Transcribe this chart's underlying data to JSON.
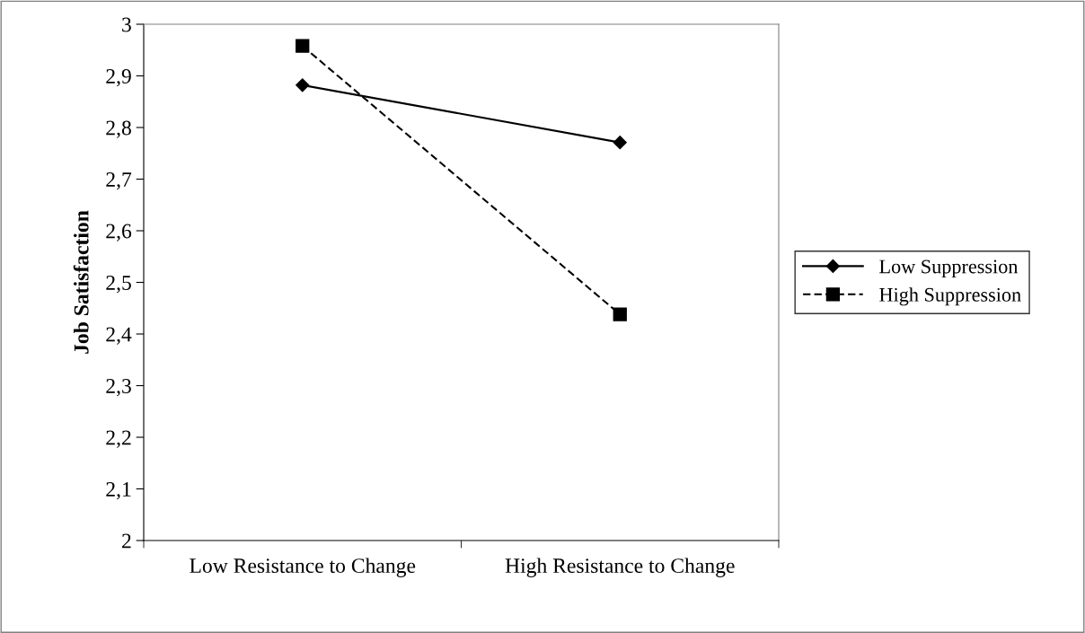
{
  "chart_data": {
    "type": "line",
    "ylabel": "Job Satisfaction",
    "categories": [
      "Low Resistance to Change",
      "High Resistance to Change"
    ],
    "series": [
      {
        "name": "Low Suppression",
        "color": "#000000",
        "values": [
          2.882,
          2.771
        ],
        "marker": "diamond",
        "line_style": "solid"
      },
      {
        "name": "High Suppression",
        "color": "#000000",
        "values": [
          2.958,
          2.438
        ],
        "marker": "square",
        "line_style": "dashed"
      }
    ],
    "ylim": [
      2,
      3
    ],
    "yticks": [
      {
        "value": 2,
        "label": "2"
      },
      {
        "value": 2.1,
        "label": "2,1"
      },
      {
        "value": 2.2,
        "label": "2,2"
      },
      {
        "value": 2.3,
        "label": "2,3"
      },
      {
        "value": 2.4,
        "label": "2,4"
      },
      {
        "value": 2.5,
        "label": "2,5"
      },
      {
        "value": 2.6,
        "label": "2,6"
      },
      {
        "value": 2.7,
        "label": "2,7"
      },
      {
        "value": 2.8,
        "label": "2,8"
      },
      {
        "value": 2.9,
        "label": "2,9"
      },
      {
        "value": 3,
        "label": "3"
      }
    ],
    "grid": false,
    "legend": "right"
  }
}
